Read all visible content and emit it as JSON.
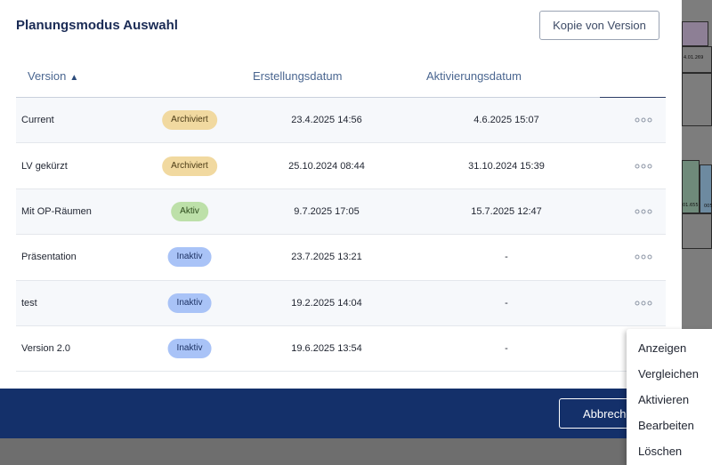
{
  "modal": {
    "title": "Planungsmodus Auswahl",
    "copy_button": "Kopie von Version",
    "cancel_button": "Abbrechen"
  },
  "table": {
    "headers": {
      "version": "Version",
      "sort_arrow": "▲",
      "created": "Erstellungsdatum",
      "activated": "Aktivierungsdatum"
    },
    "rows": [
      {
        "name": "Current",
        "status": "Archiviert",
        "created": "23.4.2025 14:56",
        "activated": "4.6.2025 15:07"
      },
      {
        "name": "LV gekürzt",
        "status": "Archiviert",
        "created": "25.10.2024 08:44",
        "activated": "31.10.2024 15:39"
      },
      {
        "name": "Mit OP-Räumen",
        "status": "Aktiv",
        "created": "9.7.2025 17:05",
        "activated": "15.7.2025 12:47"
      },
      {
        "name": "Präsentation",
        "status": "Inaktiv",
        "created": "23.7.2025 13:21",
        "activated": "-"
      },
      {
        "name": "test",
        "status": "Inaktiv",
        "created": "19.2.2025 14:04",
        "activated": "-"
      },
      {
        "name": "Version 2.0",
        "status": "Inaktiv",
        "created": "19.6.2025 13:54",
        "activated": "-"
      }
    ]
  },
  "context_menu": {
    "items": [
      "Anzeigen",
      "Vergleichen",
      "Aktivieren",
      "Bearbeiten",
      "Löschen"
    ]
  },
  "background_plan": {
    "labels": [
      "4.01.269",
      "01.655",
      "005"
    ]
  },
  "colors": {
    "title": "#1a2b55",
    "footer": "#14306a",
    "badge_archiviert": "#f1d9a0",
    "badge_aktiv": "#bde0a9",
    "badge_inaktiv": "#a9c3f7"
  },
  "icons": {
    "row_menu": "more-horizontal-icon"
  }
}
